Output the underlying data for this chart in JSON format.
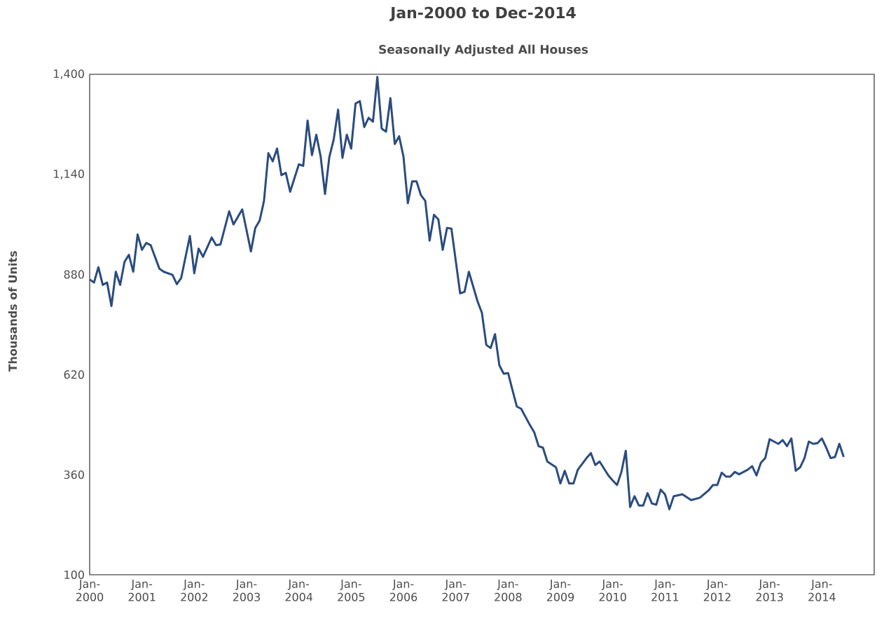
{
  "chart_data": {
    "type": "line",
    "title": "Jan-2000 to Dec-2014",
    "subtitle": "Seasonally Adjusted All Houses",
    "ylabel": "Thousands of Units",
    "xlim": [
      "2000-01",
      "2015-01"
    ],
    "xticks": [
      {
        "value": "2000-01",
        "label": "Jan-2000"
      },
      {
        "value": "2001-01",
        "label": "Jan-2001"
      },
      {
        "value": "2002-01",
        "label": "Jan-2002"
      },
      {
        "value": "2003-01",
        "label": "Jan-2003"
      },
      {
        "value": "2004-01",
        "label": "Jan-2004"
      },
      {
        "value": "2005-01",
        "label": "Jan-2005"
      },
      {
        "value": "2006-01",
        "label": "Jan-2006"
      },
      {
        "value": "2007-01",
        "label": "Jan-2007"
      },
      {
        "value": "2008-01",
        "label": "Jan-2008"
      },
      {
        "value": "2009-01",
        "label": "Jan-2009"
      },
      {
        "value": "2010-01",
        "label": "Jan-2010"
      },
      {
        "value": "2011-01",
        "label": "Jan-2011"
      },
      {
        "value": "2012-01",
        "label": "Jan-2012"
      },
      {
        "value": "2013-01",
        "label": "Jan-2013"
      },
      {
        "value": "2014-01",
        "label": "Jan-2014"
      }
    ],
    "ylim": [
      100,
      1400
    ],
    "yticks": [
      100,
      360,
      620,
      880,
      {
        "value": 1140,
        "label": "1,140"
      },
      {
        "value": 1400,
        "label": "1,400"
      }
    ],
    "grid": false,
    "marker": "none",
    "line_style": "solid",
    "series": [
      {
        "color": "#2b4c7e",
        "x": [
          "2000-01",
          "2000-02",
          "2000-03",
          "2000-04",
          "2000-05",
          "2000-06",
          "2000-07",
          "2000-08",
          "2000-09",
          "2000-10",
          "2000-11",
          "2000-12",
          "2001-01",
          "2001-02",
          "2001-03",
          "2001-05",
          "2001-06",
          "2001-08",
          "2001-09",
          "2001-10",
          "2001-12",
          "2002-01",
          "2002-02",
          "2002-03",
          "2002-05",
          "2002-06",
          "2002-07",
          "2002-09",
          "2002-10",
          "2002-12",
          "2003-02",
          "2003-03",
          "2003-04",
          "2003-05",
          "2003-06",
          "2003-07",
          "2003-08",
          "2003-09",
          "2003-10",
          "2003-11",
          "2004-01",
          "2004-02",
          "2004-03",
          "2004-04",
          "2004-05",
          "2004-06",
          "2004-07",
          "2004-08",
          "2004-09",
          "2004-10",
          "2004-11",
          "2004-12",
          "2005-01",
          "2005-02",
          "2005-03",
          "2005-04",
          "2005-05",
          "2005-06",
          "2005-07",
          "2005-08",
          "2005-09",
          "2005-10",
          "2005-11",
          "2005-12",
          "2006-01",
          "2006-02",
          "2006-03",
          "2006-04",
          "2006-05",
          "2006-06",
          "2006-07",
          "2006-08",
          "2006-09",
          "2006-10",
          "2006-11",
          "2006-12",
          "2007-02",
          "2007-03",
          "2007-04",
          "2007-06",
          "2007-07",
          "2007-08",
          "2007-09",
          "2007-10",
          "2007-11",
          "2007-12",
          "2008-01",
          "2008-02",
          "2008-03",
          "2008-04",
          "2008-06",
          "2008-07",
          "2008-08",
          "2008-09",
          "2008-10",
          "2008-12",
          "2009-01",
          "2009-02",
          "2009-03",
          "2009-04",
          "2009-05",
          "2009-07",
          "2009-08",
          "2009-09",
          "2009-10",
          "2009-12",
          "2010-01",
          "2010-02",
          "2010-03",
          "2010-04",
          "2010-05",
          "2010-06",
          "2010-07",
          "2010-08",
          "2010-09",
          "2010-10",
          "2010-11",
          "2010-12",
          "2011-01",
          "2011-02",
          "2011-03",
          "2011-05",
          "2011-07",
          "2011-09",
          "2011-11",
          "2011-12",
          "2012-01",
          "2012-02",
          "2012-03",
          "2012-04",
          "2012-05",
          "2012-06",
          "2012-08",
          "2012-09",
          "2012-10",
          "2012-11",
          "2012-12",
          "2013-01",
          "2013-02",
          "2013-03",
          "2013-04",
          "2013-05",
          "2013-06",
          "2013-07",
          "2013-08",
          "2013-09",
          "2013-10",
          "2013-11",
          "2013-12",
          "2014-01",
          "2014-02",
          "2014-03",
          "2014-04",
          "2014-05",
          "2014-06"
        ],
        "values": [
          867,
          859,
          899,
          853,
          859,
          798,
          887,
          853,
          913,
          931,
          887,
          984,
          944,
          962,
          956,
          895,
          887,
          879,
          855,
          871,
          980,
          883,
          947,
          926,
          976,
          956,
          958,
          1044,
          1010,
          1049,
          940,
          1001,
          1020,
          1071,
          1195,
          1174,
          1207,
          1138,
          1144,
          1095,
          1166,
          1162,
          1280,
          1190,
          1243,
          1186,
          1089,
          1186,
          1231,
          1308,
          1183,
          1243,
          1207,
          1324,
          1330,
          1263,
          1287,
          1277,
          1393,
          1259,
          1251,
          1338,
          1219,
          1239,
          1186,
          1065,
          1122,
          1122,
          1086,
          1071,
          968,
          1035,
          1023,
          944,
          1001,
          999,
          831,
          835,
          887,
          810,
          780,
          697,
          689,
          725,
          644,
          622,
          624,
          580,
          537,
          531,
          489,
          470,
          434,
          430,
          394,
          379,
          337,
          370,
          337,
          337,
          373,
          403,
          416,
          385,
          394,
          358,
          345,
          333,
          367,
          422,
          276,
          304,
          280,
          280,
          312,
          285,
          282,
          321,
          309,
          270,
          304,
          309,
          294,
          300,
          319,
          333,
          333,
          365,
          355,
          355,
          367,
          361,
          373,
          382,
          358,
          391,
          403,
          452,
          446,
          440,
          450,
          434,
          454,
          370,
          379,
          403,
          446,
          440,
          442,
          454,
          430,
          403,
          406,
          440,
          406
        ]
      }
    ]
  }
}
